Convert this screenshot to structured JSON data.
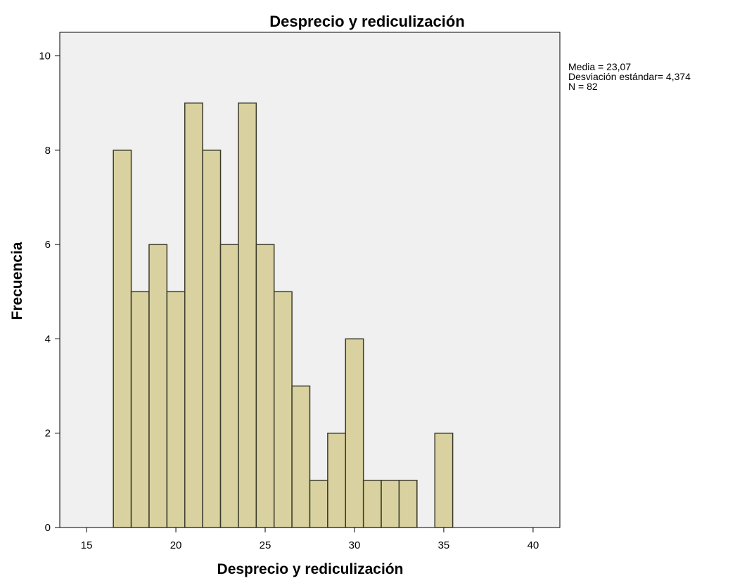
{
  "chart_data": {
    "type": "bar",
    "title": "Desprecio y rediculización",
    "xlabel": "Desprecio y rediculización",
    "ylabel": "Frecuencia",
    "xlim": [
      13.5,
      41.5
    ],
    "ylim": [
      0,
      10.5
    ],
    "x_ticks": [
      15,
      20,
      25,
      30,
      35,
      40
    ],
    "y_ticks": [
      0,
      2,
      4,
      6,
      8,
      10
    ],
    "grid": false,
    "bin_width": 1,
    "x": [
      17,
      18,
      19,
      20,
      21,
      22,
      23,
      24,
      25,
      26,
      27,
      28,
      29,
      30,
      31,
      32,
      33,
      35
    ],
    "values": [
      8,
      5,
      6,
      5,
      9,
      8,
      6,
      9,
      6,
      5,
      3,
      1,
      2,
      4,
      1,
      1,
      1,
      2
    ],
    "bar_color": "#d9d2a0",
    "bar_edge_color": "#3a3a2a",
    "plot_background": "#f0f0f0"
  },
  "stats": {
    "mean": "Media = 23,07",
    "std": "Desviación estándar= 4,374",
    "n": "N = 82"
  }
}
